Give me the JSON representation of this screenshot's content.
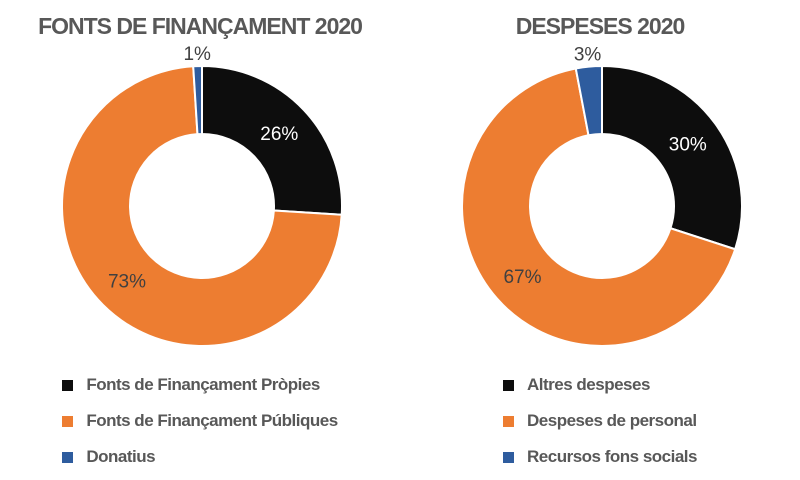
{
  "styles": {
    "background": "#ffffff",
    "title_color": "#585858",
    "legend_text_color": "#585858",
    "slice_border_color": "#ffffff"
  },
  "chart_data": [
    {
      "type": "pie",
      "variant": "donut",
      "title": "FONTS DE FINANÇAMENT 2020",
      "unit": "%",
      "direction": "clockwise",
      "start_angle_deg": 0,
      "inner_radius_ratio": 0.52,
      "legend_position": "bottom",
      "categories": [
        "Fonts de Finançament Pròpies",
        "Fonts de Finançament Públiques",
        "Donatius"
      ],
      "values": [
        26,
        73,
        1
      ],
      "slices": [
        {
          "label": "Fonts de Finançament Pròpies",
          "value": 26,
          "data_label": "26%",
          "color": "#0d0d0d",
          "data_label_color": "#ffffff",
          "data_label_position": "inside"
        },
        {
          "label": "Fonts de Finançament Públiques",
          "value": 73,
          "data_label": "73%",
          "color": "#ed7d31",
          "data_label_color": "#404040",
          "data_label_position": "inside"
        },
        {
          "label": "Donatius",
          "value": 1,
          "data_label": "1%",
          "color": "#2e5c9e",
          "data_label_color": "#404040",
          "data_label_position": "outside"
        }
      ]
    },
    {
      "type": "pie",
      "variant": "donut",
      "title": "DESPESES 2020",
      "unit": "%",
      "direction": "clockwise",
      "start_angle_deg": 0,
      "inner_radius_ratio": 0.52,
      "legend_position": "bottom",
      "categories": [
        "Altres despeses",
        "Despeses de personal",
        "Recursos fons socials"
      ],
      "values": [
        30,
        67,
        3
      ],
      "slices": [
        {
          "label": "Altres despeses",
          "value": 30,
          "data_label": "30%",
          "color": "#0d0d0d",
          "data_label_color": "#ffffff",
          "data_label_position": "inside"
        },
        {
          "label": "Despeses de personal",
          "value": 67,
          "data_label": "67%",
          "color": "#ed7d31",
          "data_label_color": "#404040",
          "data_label_position": "inside"
        },
        {
          "label": "Recursos fons socials",
          "value": 3,
          "data_label": "3%",
          "color": "#2e5c9e",
          "data_label_color": "#404040",
          "data_label_position": "outside"
        }
      ]
    }
  ]
}
